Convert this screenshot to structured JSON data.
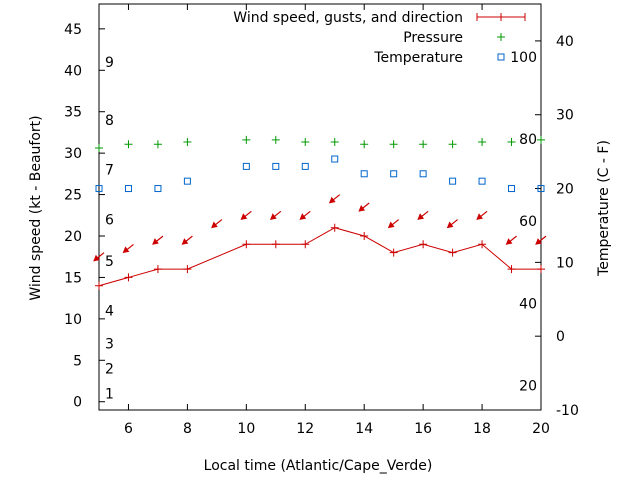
{
  "chart_data": {
    "type": "line",
    "title": "",
    "xlabel": "Local time (Atlantic/Cape_Verde)",
    "ylabel_left": "Wind speed (kt - Beaufort)",
    "ylabel_right": "Temperature (C - F)",
    "xlim": [
      5,
      20
    ],
    "ylim_left": [
      -1,
      48
    ],
    "ylim_right": [
      -10,
      45
    ],
    "x_ticks": [
      6,
      8,
      10,
      12,
      14,
      16,
      18,
      20
    ],
    "y_left_ticks": [
      0,
      5,
      10,
      15,
      20,
      25,
      30,
      35,
      40,
      45
    ],
    "y_right_ticks": [
      -10,
      0,
      10,
      20,
      30,
      40
    ],
    "beaufort_labels": [
      {
        "label": "1",
        "kt": 1
      },
      {
        "label": "2",
        "kt": 4
      },
      {
        "label": "3",
        "kt": 7
      },
      {
        "label": "4",
        "kt": 11
      },
      {
        "label": "5",
        "kt": 17
      },
      {
        "label": "6",
        "kt": 22
      },
      {
        "label": "7",
        "kt": 28
      },
      {
        "label": "8",
        "kt": 34
      },
      {
        "label": "9",
        "kt": 41
      }
    ],
    "fahrenheit_labels": [
      {
        "label": "20",
        "celsius": -6.7
      },
      {
        "label": "40",
        "celsius": 4.4
      },
      {
        "label": "60",
        "celsius": 15.6
      },
      {
        "label": "80",
        "celsius": 26.7
      },
      {
        "label": "100",
        "celsius": 37.8
      }
    ],
    "legend": [
      {
        "label": "Wind speed, gusts, and direction",
        "color": "#cc0000"
      },
      {
        "label": "Pressure",
        "color": "#009900"
      },
      {
        "label": "Temperature",
        "color": "#0066cc"
      }
    ],
    "series": [
      {
        "name": "Wind speed, gusts, and direction",
        "axis": "left",
        "color": "#cc0000",
        "x": [
          5,
          6,
          7,
          8,
          10,
          11,
          12,
          13,
          14,
          15,
          16,
          17,
          18,
          19,
          20
        ],
        "values": [
          14,
          15,
          16,
          16,
          19,
          19,
          19,
          21,
          20,
          18,
          19,
          18,
          19,
          16,
          16
        ]
      },
      {
        "name": "Pressure",
        "axis": "right",
        "color": "#009900",
        "x": [
          5,
          6,
          7,
          8,
          10,
          11,
          12,
          13,
          14,
          15,
          16,
          17,
          18,
          19,
          20
        ],
        "values": [
          25.5,
          26.0,
          26.0,
          26.3,
          26.6,
          26.6,
          26.3,
          26.3,
          26.0,
          26.0,
          26.0,
          26.0,
          26.3,
          26.3,
          26.6
        ]
      },
      {
        "name": "Temperature",
        "axis": "right",
        "color": "#0066cc",
        "x": [
          5,
          6,
          7,
          8,
          10,
          11,
          12,
          13,
          14,
          15,
          16,
          17,
          18,
          19,
          20
        ],
        "values": [
          20,
          20,
          20,
          21,
          23,
          23,
          23,
          24,
          22,
          22,
          22,
          21,
          21,
          20,
          20
        ]
      }
    ],
    "direction_arrows": {
      "color": "#cc0000",
      "kt": [
        17.5,
        18.5,
        19.5,
        19.5,
        21.5,
        22.5,
        22.5,
        22.5,
        24.5,
        23.5,
        21.5,
        22.5,
        21.5,
        22.5,
        19.5,
        19.5
      ],
      "x": [
        5,
        6,
        7,
        8,
        9,
        10,
        11,
        12,
        13,
        14,
        15,
        16,
        17,
        18,
        19,
        20
      ],
      "direction": "from northeast"
    }
  }
}
